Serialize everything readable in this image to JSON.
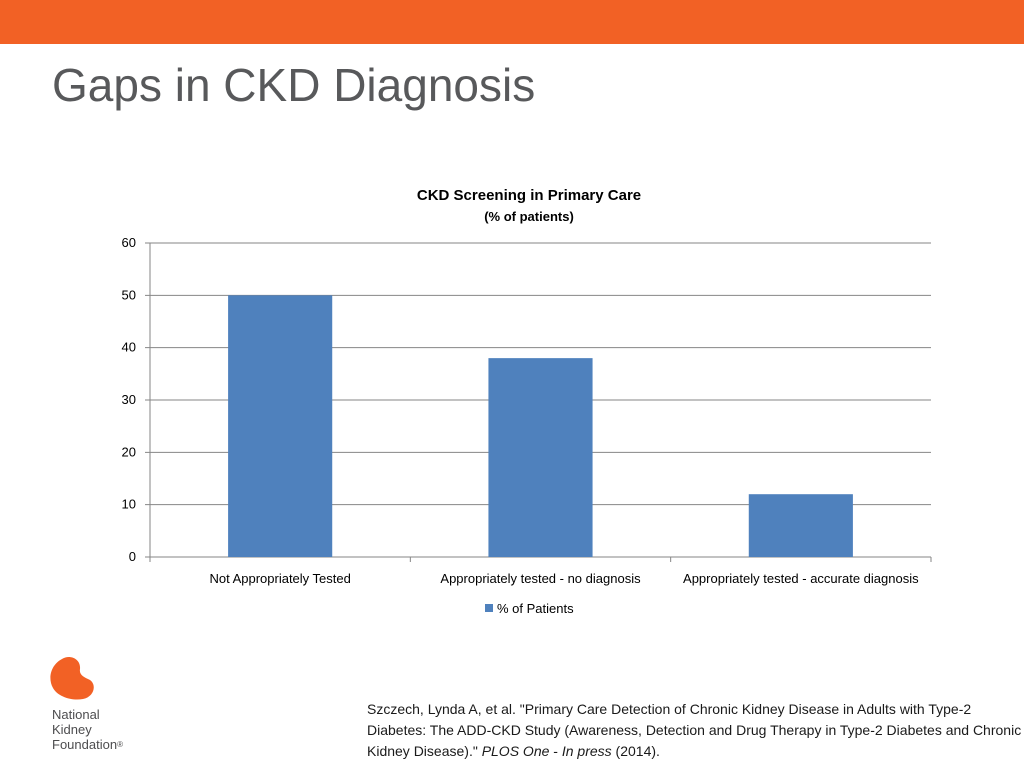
{
  "slide": {
    "title": "Gaps in CKD Diagnosis",
    "accent_color": "#f26125",
    "title_color": "#58595b"
  },
  "chart_data": {
    "type": "bar",
    "title": "CKD Screening in Primary Care",
    "subtitle": "(% of patients)",
    "categories": [
      "Not Appropriately Tested",
      "Appropriately tested - no diagnosis",
      "Appropriately tested - accurate diagnosis"
    ],
    "series": [
      {
        "name": "% of Patients",
        "values": [
          50,
          38,
          12
        ],
        "color": "#4f81bd"
      }
    ],
    "xlabel": "",
    "ylabel": "",
    "ylim": [
      0,
      60
    ],
    "yticks": [
      0,
      10,
      20,
      30,
      40,
      50,
      60
    ],
    "grid": true,
    "legend": "bottom"
  },
  "logo": {
    "line1": "National",
    "line2": "Kidney",
    "line3": "Foundation",
    "mark": "®",
    "color": "#f26125"
  },
  "citation": {
    "part1": "Szczech, Lynda A, et al. \"Primary Care Detection of Chronic Kidney Disease in Adults with Type-2 Diabetes: The ADD-CKD Study (Awareness, Detection and Drug Therapy in Type-2 Diabetes and Chronic Kidney Disease).\" ",
    "journal": "PLOS One",
    "sep": " - ",
    "status": "In press",
    "year": " (2014)."
  }
}
